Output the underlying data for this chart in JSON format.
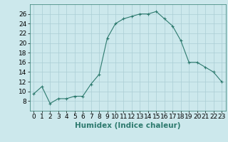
{
  "x": [
    0,
    1,
    2,
    3,
    4,
    5,
    6,
    7,
    8,
    9,
    10,
    11,
    12,
    13,
    14,
    15,
    16,
    17,
    18,
    19,
    20,
    21,
    22,
    23
  ],
  "y": [
    9.5,
    11,
    7.5,
    8.5,
    8.5,
    9,
    9,
    11.5,
    13.5,
    21,
    24,
    25,
    25.5,
    26,
    26,
    26.5,
    25,
    23.5,
    20.5,
    16,
    16,
    15,
    14,
    12
  ],
  "line_color": "#2d7a6e",
  "marker": "+",
  "bg_color": "#cce8ec",
  "grid_color": "#aacdd4",
  "xlabel": "Humidex (Indice chaleur)",
  "ylim": [
    6,
    28
  ],
  "yticks": [
    8,
    10,
    12,
    14,
    16,
    18,
    20,
    22,
    24,
    26
  ],
  "xticks": [
    0,
    1,
    2,
    3,
    4,
    5,
    6,
    7,
    8,
    9,
    10,
    11,
    12,
    13,
    14,
    15,
    16,
    17,
    18,
    19,
    20,
    21,
    22,
    23
  ],
  "xlabel_fontsize": 7.5,
  "tick_fontsize": 6.5
}
